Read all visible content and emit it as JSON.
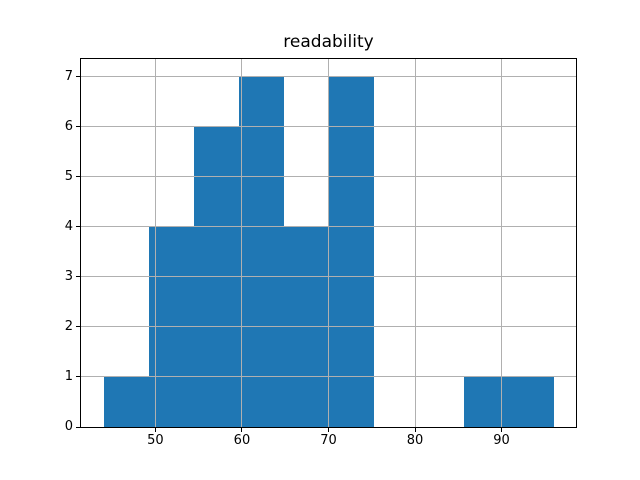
{
  "figure": {
    "title": "readability"
  },
  "chart_data": {
    "type": "bar",
    "subtype": "histogram",
    "title": "readability",
    "xlabel": "",
    "ylabel": "",
    "bin_edges": [
      44.0,
      49.2,
      54.4,
      59.6,
      64.8,
      70.0,
      75.2,
      80.4,
      85.6,
      90.8,
      96.0
    ],
    "counts": [
      1,
      4,
      6,
      7,
      4,
      7,
      0,
      0,
      1,
      1
    ],
    "xticks": [
      50,
      60,
      70,
      80,
      90
    ],
    "yticks": [
      0,
      1,
      2,
      3,
      4,
      5,
      6,
      7
    ],
    "xlim": [
      41.4,
      98.6
    ],
    "ylim": [
      0,
      7.35
    ],
    "grid": true,
    "grid_on_top_of_bars": true,
    "legend": false
  },
  "colors": {
    "bar": "#1f77b4",
    "grid": "#b0b0b0",
    "axis": "#000000",
    "background": "#ffffff",
    "text": "#000000"
  }
}
